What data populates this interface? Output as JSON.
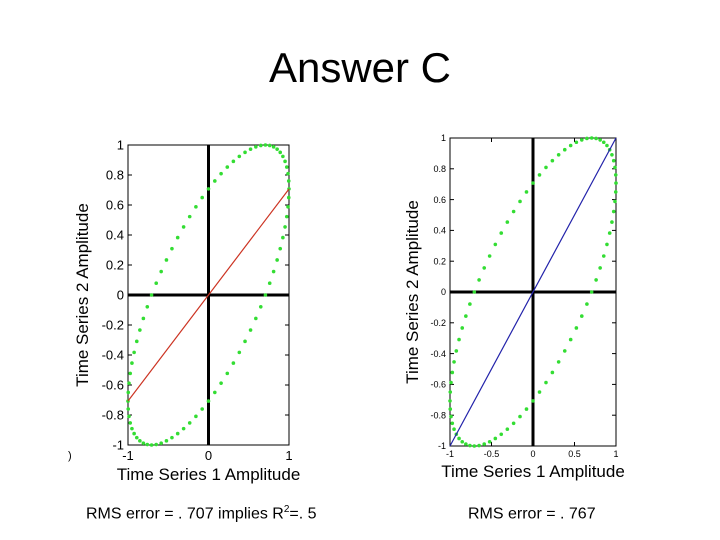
{
  "slide": {
    "title": "Answer C",
    "captions": [
      {
        "prefix": "RMS error = . 707 implies R",
        "sup": "2",
        "suffix": "=. 5"
      },
      {
        "prefix": "RMS error = . 767",
        "sup": "",
        "suffix": ""
      }
    ],
    "edge_mark": ")"
  },
  "chart_data": [
    {
      "type": "scatter",
      "xlabel": "Time Series 1 Amplitude",
      "ylabel": "Time Series 2 Amplitude",
      "xlim": [
        -1,
        1
      ],
      "ylim": [
        -1,
        1
      ],
      "xticks": [
        -1,
        0,
        1
      ],
      "yticks": [
        -1,
        -0.8,
        -0.6,
        -0.4,
        -0.2,
        0,
        0.2,
        0.4,
        0.6,
        0.8,
        1
      ],
      "grid": false,
      "series": [
        {
          "kind": "ellipse-scatter",
          "color": "#33dd33",
          "param": "x = sin(t), y = sin(t + pi/4)",
          "points": 80
        },
        {
          "kind": "fit-line",
          "color": "#cc3322",
          "x": [
            -1,
            1
          ],
          "y": [
            -0.707,
            0.707
          ]
        }
      ]
    },
    {
      "type": "scatter",
      "xlabel": "Time Series 1 Amplitude",
      "ylabel": "Time Series 2 Amplitude",
      "xlim": [
        -1,
        1
      ],
      "ylim": [
        -1,
        1
      ],
      "xticks": [
        -1,
        -0.5,
        0,
        0.5,
        1
      ],
      "yticks": [
        -1,
        -0.8,
        -0.6,
        -0.4,
        -0.2,
        0,
        0.2,
        0.4,
        0.6,
        0.8,
        1
      ],
      "grid": false,
      "series": [
        {
          "kind": "ellipse-scatter",
          "color": "#33dd33",
          "param": "x = sin(t), y = sin(t + pi/4)",
          "points": 80
        },
        {
          "kind": "fit-line",
          "color": "#2222aa",
          "x": [
            -1,
            1
          ],
          "y": [
            -1,
            1
          ]
        }
      ]
    }
  ]
}
